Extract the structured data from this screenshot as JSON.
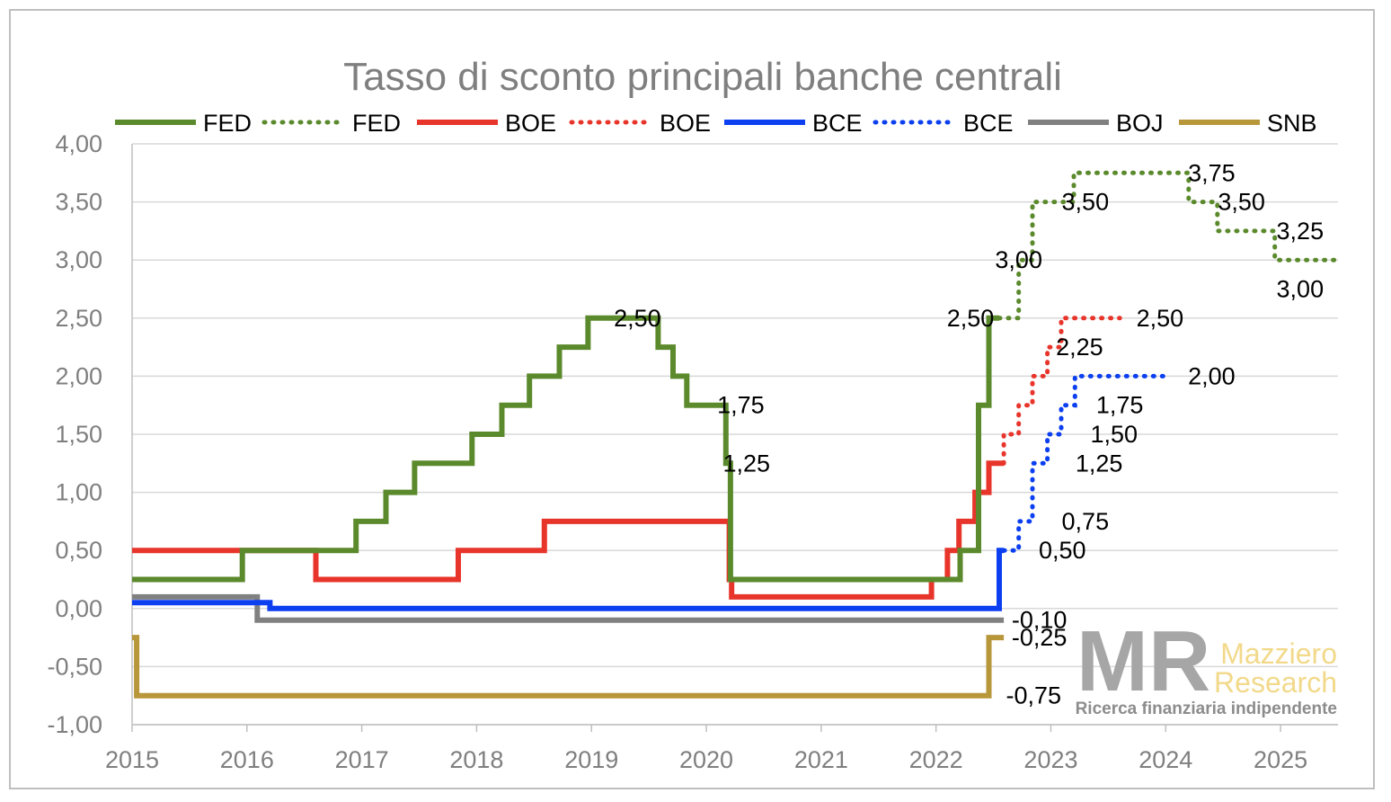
{
  "chart_data": {
    "type": "line",
    "title": "Tasso di sconto principali banche centrali",
    "xlabel": "",
    "ylabel": "",
    "xlim": [
      2015,
      2025.5
    ],
    "ylim": [
      -1.0,
      4.0
    ],
    "x_ticks": [
      "2015",
      "2016",
      "2017",
      "2018",
      "2019",
      "2020",
      "2021",
      "2022",
      "2023",
      "2024",
      "2025"
    ],
    "y_ticks": [
      "4,00",
      "3,50",
      "3,00",
      "2,50",
      "2,00",
      "1,50",
      "1,00",
      "0,50",
      "0,00",
      "-0,50",
      "-1,00"
    ],
    "grid": "horizontal",
    "legend_position": "top",
    "series": [
      {
        "name": "FED",
        "style": "solid",
        "color": "#5b8a2d",
        "points": [
          [
            2015,
            0.25
          ],
          [
            2015.96,
            0.25
          ],
          [
            2015.96,
            0.5
          ],
          [
            2016.95,
            0.5
          ],
          [
            2016.95,
            0.75
          ],
          [
            2017.21,
            0.75
          ],
          [
            2017.21,
            1.0
          ],
          [
            2017.46,
            1.0
          ],
          [
            2017.46,
            1.25
          ],
          [
            2017.96,
            1.25
          ],
          [
            2017.96,
            1.5
          ],
          [
            2018.22,
            1.5
          ],
          [
            2018.22,
            1.75
          ],
          [
            2018.46,
            1.75
          ],
          [
            2018.46,
            2.0
          ],
          [
            2018.72,
            2.0
          ],
          [
            2018.72,
            2.25
          ],
          [
            2018.97,
            2.25
          ],
          [
            2018.97,
            2.5
          ],
          [
            2019.58,
            2.5
          ],
          [
            2019.58,
            2.25
          ],
          [
            2019.71,
            2.25
          ],
          [
            2019.71,
            2.0
          ],
          [
            2019.83,
            2.0
          ],
          [
            2019.83,
            1.75
          ],
          [
            2020.17,
            1.75
          ],
          [
            2020.17,
            1.25
          ],
          [
            2020.21,
            1.25
          ],
          [
            2020.21,
            0.25
          ],
          [
            2022.21,
            0.25
          ],
          [
            2022.21,
            0.5
          ],
          [
            2022.37,
            0.5
          ],
          [
            2022.37,
            1.0
          ],
          [
            2022.37,
            1.75
          ],
          [
            2022.46,
            1.75
          ],
          [
            2022.46,
            2.5
          ],
          [
            2022.55,
            2.5
          ]
        ]
      },
      {
        "name": "FED",
        "style": "dotted",
        "color": "#5b8a2d",
        "points": [
          [
            2022.55,
            2.5
          ],
          [
            2022.72,
            2.5
          ],
          [
            2022.72,
            3.0
          ],
          [
            2022.84,
            3.0
          ],
          [
            2022.84,
            3.5
          ],
          [
            2023.2,
            3.5
          ],
          [
            2023.2,
            3.75
          ],
          [
            2024.2,
            3.75
          ],
          [
            2024.2,
            3.5
          ],
          [
            2024.45,
            3.5
          ],
          [
            2024.45,
            3.25
          ],
          [
            2024.95,
            3.25
          ],
          [
            2024.95,
            3.0
          ],
          [
            2025.5,
            3.0
          ]
        ]
      },
      {
        "name": "BOE",
        "style": "solid",
        "color": "#e8352b",
        "points": [
          [
            2015,
            0.5
          ],
          [
            2016.6,
            0.5
          ],
          [
            2016.6,
            0.25
          ],
          [
            2017.84,
            0.25
          ],
          [
            2017.84,
            0.5
          ],
          [
            2018.59,
            0.5
          ],
          [
            2018.59,
            0.75
          ],
          [
            2020.2,
            0.75
          ],
          [
            2020.2,
            0.25
          ],
          [
            2020.22,
            0.25
          ],
          [
            2020.22,
            0.1
          ],
          [
            2021.96,
            0.1
          ],
          [
            2021.96,
            0.25
          ],
          [
            2022.1,
            0.25
          ],
          [
            2022.1,
            0.5
          ],
          [
            2022.2,
            0.5
          ],
          [
            2022.2,
            0.75
          ],
          [
            2022.34,
            0.75
          ],
          [
            2022.34,
            1.0
          ],
          [
            2022.46,
            1.0
          ],
          [
            2022.46,
            1.25
          ],
          [
            2022.59,
            1.25
          ]
        ]
      },
      {
        "name": "BOE",
        "style": "dotted",
        "color": "#e8352b",
        "points": [
          [
            2022.59,
            1.25
          ],
          [
            2022.59,
            1.5
          ],
          [
            2022.72,
            1.5
          ],
          [
            2022.72,
            1.75
          ],
          [
            2022.84,
            1.75
          ],
          [
            2022.84,
            2.0
          ],
          [
            2022.97,
            2.0
          ],
          [
            2022.97,
            2.25
          ],
          [
            2023.09,
            2.25
          ],
          [
            2023.09,
            2.5
          ],
          [
            2023.6,
            2.5
          ]
        ]
      },
      {
        "name": "BCE",
        "style": "solid",
        "color": "#0b3ff0",
        "points": [
          [
            2015,
            0.05
          ],
          [
            2016.2,
            0.05
          ],
          [
            2016.2,
            0.0
          ],
          [
            2022.55,
            0.0
          ],
          [
            2022.55,
            0.5
          ],
          [
            2022.59,
            0.5
          ]
        ]
      },
      {
        "name": "BCE",
        "style": "dotted",
        "color": "#0b3ff0",
        "points": [
          [
            2022.59,
            0.5
          ],
          [
            2022.72,
            0.5
          ],
          [
            2022.72,
            0.75
          ],
          [
            2022.84,
            0.75
          ],
          [
            2022.84,
            1.25
          ],
          [
            2022.97,
            1.25
          ],
          [
            2022.97,
            1.5
          ],
          [
            2023.09,
            1.5
          ],
          [
            2023.09,
            1.75
          ],
          [
            2023.21,
            1.75
          ],
          [
            2023.21,
            2.0
          ],
          [
            2024.0,
            2.0
          ]
        ]
      },
      {
        "name": "BOJ",
        "style": "solid",
        "color": "#808080",
        "points": [
          [
            2015,
            0.1
          ],
          [
            2016.09,
            0.1
          ],
          [
            2016.09,
            -0.1
          ],
          [
            2022.59,
            -0.1
          ]
        ]
      },
      {
        "name": "SNB",
        "style": "solid",
        "color": "#b8963a",
        "points": [
          [
            2015,
            -0.25
          ],
          [
            2015.04,
            -0.25
          ],
          [
            2015.04,
            -0.75
          ],
          [
            2022.46,
            -0.75
          ],
          [
            2022.46,
            -0.25
          ],
          [
            2022.59,
            -0.25
          ]
        ]
      }
    ],
    "annotations": [
      {
        "text": "2,50",
        "x": 2019.4,
        "y": 2.5
      },
      {
        "text": "1,75",
        "x": 2020.3,
        "y": 1.75
      },
      {
        "text": "1,25",
        "x": 2020.35,
        "y": 1.25
      },
      {
        "text": "2,50",
        "x": 2022.3,
        "y": 2.5
      },
      {
        "text": "3,00",
        "x": 2022.72,
        "y": 3.0
      },
      {
        "text": "3,50",
        "x": 2023.3,
        "y": 3.5
      },
      {
        "text": "3,75",
        "x": 2024.4,
        "y": 3.75
      },
      {
        "text": "3,50",
        "x": 2024.66,
        "y": 3.5
      },
      {
        "text": "3,25",
        "x": 2025.17,
        "y": 3.25
      },
      {
        "text": "3,00",
        "x": 2025.17,
        "y": 2.75
      },
      {
        "text": "2,50",
        "x": 2023.95,
        "y": 2.5
      },
      {
        "text": "2,25",
        "x": 2023.25,
        "y": 2.25
      },
      {
        "text": "2,00",
        "x": 2024.4,
        "y": 2.0
      },
      {
        "text": "1,75",
        "x": 2023.6,
        "y": 1.75
      },
      {
        "text": "1,50",
        "x": 2023.55,
        "y": 1.5
      },
      {
        "text": "1,25",
        "x": 2023.42,
        "y": 1.25
      },
      {
        "text": "0,75",
        "x": 2023.3,
        "y": 0.75
      },
      {
        "text": "0,50",
        "x": 2023.1,
        "y": 0.5
      },
      {
        "text": "-0,10",
        "x": 2022.9,
        "y": -0.1
      },
      {
        "text": "-0,25",
        "x": 2022.9,
        "y": -0.25
      },
      {
        "text": "-0,75",
        "x": 2022.85,
        "y": -0.75
      }
    ]
  },
  "watermark": {
    "logo": "MR",
    "name_line1": "Mazziero",
    "name_line2": "Research",
    "tagline": "Ricerca finanziaria indipendente"
  }
}
